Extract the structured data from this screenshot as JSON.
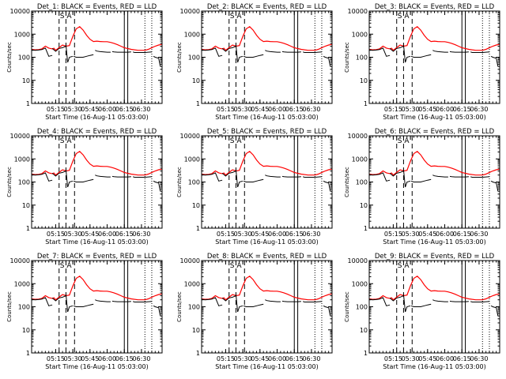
{
  "chart_data": [
    {
      "type": "line",
      "title": "Det_1: BLACK = Events, RED = LLD",
      "xlabel": "Start Time (16-Aug-11 05:03:00)",
      "ylabel": "Counts/sec",
      "y_scale": "log",
      "ylim": [
        1,
        10000
      ],
      "yticks": [
        "1",
        "10",
        "100",
        "1000",
        "10000"
      ],
      "xticks": [
        "05:15",
        "05:30",
        "05:45",
        "06:00",
        "06:15",
        "06:30"
      ],
      "xlim_min": [
        5,
        43
      ],
      "annotations": [
        "S",
        "A"
      ],
      "series": []
    },
    {
      "type": "line",
      "title": "Det_2: BLACK = Events, RED = LLD",
      "xlabel": "Start Time (16-Aug-11 05:03:00)",
      "ylabel": "Counts/sec",
      "y_scale": "log",
      "ylim": [
        1,
        10000
      ],
      "yticks": [
        "1",
        "10",
        "100",
        "1000",
        "10000"
      ],
      "xticks": [
        "05:15",
        "05:30",
        "05:45",
        "06:00",
        "06:15",
        "06:30"
      ],
      "xlim_min": [
        5,
        43
      ],
      "annotations": [
        "S",
        "A"
      ],
      "series": []
    },
    {
      "type": "line",
      "title": "Det_3: BLACK = Events, RED = LLD",
      "xlabel": "Start Time (16-Aug-11 05:03:00)",
      "ylabel": "Counts/sec",
      "y_scale": "log",
      "ylim": [
        1,
        10000
      ],
      "yticks": [
        "1",
        "10",
        "100",
        "1000",
        "10000"
      ],
      "xticks": [
        "05:15",
        "05:30",
        "05:45",
        "06:00",
        "06:15",
        "06:30"
      ],
      "xlim_min": [
        5,
        43
      ],
      "annotations": [
        "S",
        "A"
      ],
      "series": []
    },
    {
      "type": "line",
      "title": "Det_4: BLACK = Events, RED = LLD",
      "xlabel": "Start Time (16-Aug-11 05:03:00)",
      "ylabel": "Counts/sec",
      "y_scale": "log",
      "ylim": [
        1,
        10000
      ],
      "yticks": [
        "1",
        "10",
        "100",
        "1000",
        "10000"
      ],
      "xticks": [
        "05:15",
        "05:30",
        "05:45",
        "06:00",
        "06:15",
        "06:30"
      ],
      "xlim_min": [
        5,
        43
      ],
      "annotations": [
        "S",
        "A"
      ],
      "series": []
    },
    {
      "type": "line",
      "title": "Det_5: BLACK = Events, RED = LLD",
      "xlabel": "Start Time (16-Aug-11 05:03:00)",
      "ylabel": "Counts/sec",
      "y_scale": "log",
      "ylim": [
        1,
        10000
      ],
      "yticks": [
        "1",
        "10",
        "100",
        "1000",
        "10000"
      ],
      "xticks": [
        "05:15",
        "05:30",
        "05:45",
        "06:00",
        "06:15",
        "06:30"
      ],
      "xlim_min": [
        5,
        43
      ],
      "annotations": [
        "S",
        "A"
      ],
      "series": []
    },
    {
      "type": "line",
      "title": "Det_6: BLACK = Events, RED = LLD",
      "xlabel": "Start Time (16-Aug-11 05:03:00)",
      "ylabel": "Counts/sec",
      "y_scale": "log",
      "ylim": [
        1,
        10000
      ],
      "yticks": [
        "1",
        "10",
        "100",
        "1000",
        "10000"
      ],
      "xticks": [
        "05:15",
        "05:30",
        "05:45",
        "06:00",
        "06:15",
        "06:30"
      ],
      "xlim_min": [
        5,
        43
      ],
      "annotations": [
        "S",
        "A"
      ],
      "series": []
    },
    {
      "type": "line",
      "title": "Det_7: BLACK = Events, RED = LLD",
      "xlabel": "Start Time (16-Aug-11 05:03:00)",
      "ylabel": "Counts/sec",
      "y_scale": "log",
      "ylim": [
        1,
        10000
      ],
      "yticks": [
        "1",
        "10",
        "100",
        "1000",
        "10000"
      ],
      "xticks": [
        "05:15",
        "05:30",
        "05:45",
        "06:00",
        "06:15",
        "06:30"
      ],
      "xlim_min": [
        5,
        43
      ],
      "annotations": [
        "S",
        "A"
      ],
      "series": []
    },
    {
      "type": "line",
      "title": "Det_8: BLACK = Events, RED = LLD",
      "xlabel": "Start Time (16-Aug-11 05:03:00)",
      "ylabel": "Counts/sec",
      "y_scale": "log",
      "ylim": [
        1,
        10000
      ],
      "yticks": [
        "1",
        "10",
        "100",
        "1000",
        "10000"
      ],
      "xticks": [
        "05:15",
        "05:30",
        "05:45",
        "06:00",
        "06:15",
        "06:30"
      ],
      "xlim_min": [
        5,
        43
      ],
      "annotations": [
        "S",
        "A"
      ],
      "series": []
    },
    {
      "type": "line",
      "title": "Det_9: BLACK = Events, RED = LLD",
      "xlabel": "Start Time (16-Aug-11 05:03:00)",
      "ylabel": "Counts/sec",
      "y_scale": "log",
      "ylim": [
        1,
        10000
      ],
      "yticks": [
        "1",
        "10",
        "100",
        "1000",
        "10000"
      ],
      "xticks": [
        "05:15",
        "05:30",
        "05:45",
        "06:00",
        "06:15",
        "06:30"
      ],
      "xlim_min": [
        5,
        43
      ],
      "annotations": [
        "S",
        "A"
      ],
      "series": []
    }
  ],
  "series_template": {
    "lld": {
      "color": "#ff0000",
      "x_min": [
        5,
        6,
        7,
        8,
        9,
        10,
        11,
        11.5,
        12,
        13,
        14,
        15,
        16,
        17,
        18,
        19,
        20,
        21,
        22,
        23,
        24,
        25,
        26,
        27,
        28,
        29,
        30,
        31,
        32,
        34,
        36,
        38,
        39,
        40,
        41,
        42,
        43
      ],
      "y": [
        220,
        210,
        215,
        230,
        300,
        250,
        230,
        245,
        200,
        260,
        340,
        300,
        320,
        800,
        1700,
        2100,
        1500,
        900,
        600,
        480,
        500,
        480,
        470,
        470,
        440,
        400,
        350,
        300,
        260,
        220,
        200,
        200,
        220,
        260,
        300,
        340,
        360
      ]
    },
    "events_segments": [
      {
        "x_min": [
          5,
          6,
          7,
          8,
          9,
          10,
          11
        ],
        "y": [
          210,
          200,
          205,
          215,
          250,
          110,
          120
        ]
      },
      {
        "x_min": [
          11,
          12,
          13,
          14,
          15
        ],
        "y": [
          240,
          180,
          240,
          260,
          300
        ]
      },
      {
        "x_min": [
          15,
          15.5,
          16,
          17
        ],
        "y": [
          350,
          60,
          100,
          110
        ]
      },
      {
        "x_min": [
          17.2,
          18,
          19,
          20,
          21,
          22,
          23
        ],
        "y": [
          110,
          100,
          100,
          100,
          110,
          120,
          130
        ]
      },
      {
        "x_min": [
          23.5,
          24,
          25,
          26,
          27,
          28
        ],
        "y": [
          200,
          185,
          175,
          170,
          165,
          165
        ]
      },
      {
        "x_min": [
          28.5,
          29,
          30,
          31,
          32,
          33,
          34
        ],
        "y": [
          175,
          170,
          165,
          165,
          165,
          165,
          170
        ]
      },
      {
        "x_min": [
          34.5,
          35,
          36,
          37,
          38,
          39,
          40
        ],
        "y": [
          170,
          160,
          160,
          160,
          160,
          165,
          170
        ]
      },
      {
        "x_min": [
          40.5,
          41,
          42,
          42.5
        ],
        "y": [
          110,
          100,
          90,
          40
        ]
      }
    ],
    "dashed_v_min": [
      13,
      15,
      17.5
    ],
    "solid_v_min": [
      32,
      33
    ],
    "dotted_v_min": [
      38,
      40
    ]
  }
}
